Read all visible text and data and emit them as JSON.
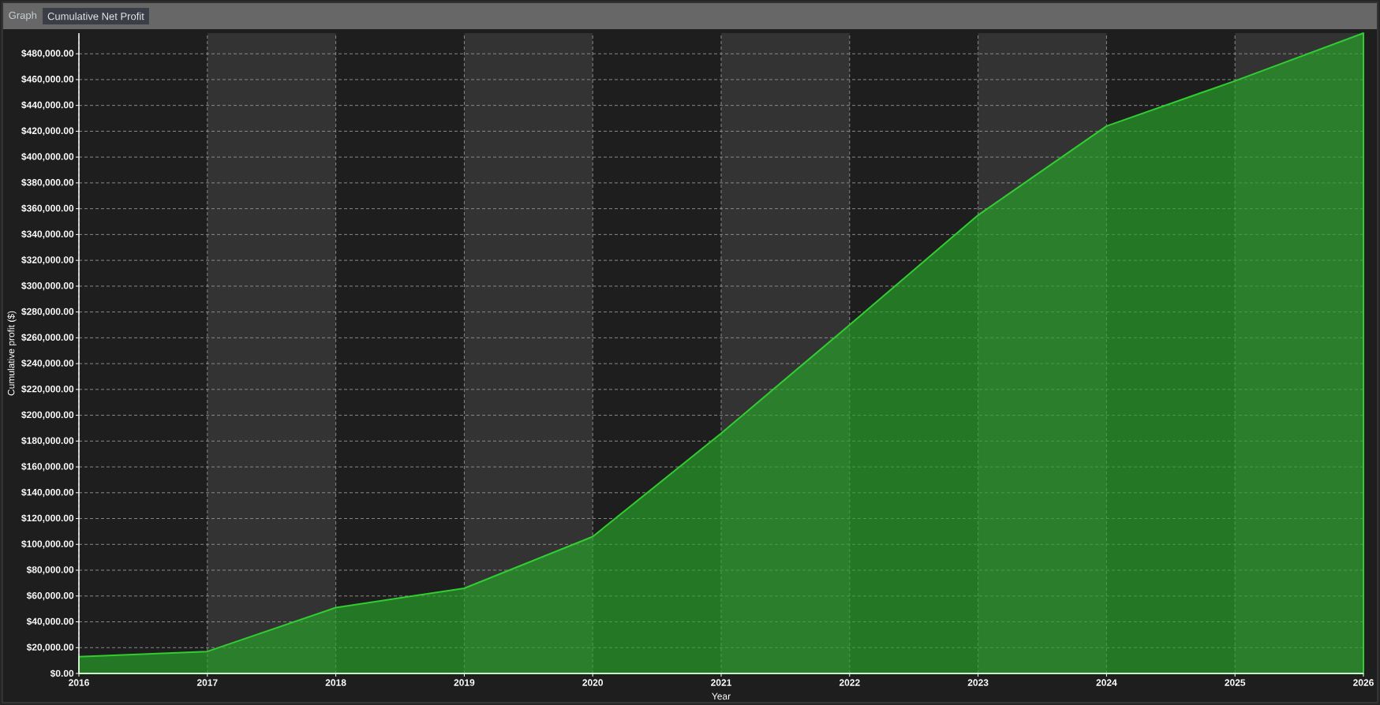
{
  "chart_data": {
    "type": "area",
    "title": "Cumulative Net Profit",
    "annotations": [
      "Graph"
    ],
    "xlabel": "Year",
    "ylabel": "Cumulative profit ($)",
    "x": [
      2016,
      2017,
      2018,
      2019,
      2020,
      2021,
      2022,
      2023,
      2024,
      2025,
      2026
    ],
    "series": [
      {
        "color": "#32cd32",
        "values": [
          13000,
          17000,
          51000,
          66000,
          106000,
          186000,
          270000,
          355000,
          424000,
          459000,
          496000
        ]
      }
    ],
    "xlim": [
      2016,
      2026
    ],
    "xticks": [
      2016,
      2017,
      2018,
      2019,
      2020,
      2021,
      2022,
      2023,
      2024,
      2025,
      2026
    ],
    "ylim": [
      0,
      496000
    ],
    "yticks": [
      {
        "value": 0,
        "label": "$0.00"
      },
      {
        "value": 20000,
        "label": "$20,000.00"
      },
      {
        "value": 40000,
        "label": "$40,000.00"
      },
      {
        "value": 60000,
        "label": "$60,000.00"
      },
      {
        "value": 80000,
        "label": "$80,000.00"
      },
      {
        "value": 100000,
        "label": "$100,000.00"
      },
      {
        "value": 120000,
        "label": "$120,000.00"
      },
      {
        "value": 140000,
        "label": "$140,000.00"
      },
      {
        "value": 160000,
        "label": "$160,000.00"
      },
      {
        "value": 180000,
        "label": "$180,000.00"
      },
      {
        "value": 200000,
        "label": "$200,000.00"
      },
      {
        "value": 220000,
        "label": "$220,000.00"
      },
      {
        "value": 240000,
        "label": "$240,000.00"
      },
      {
        "value": 260000,
        "label": "$260,000.00"
      },
      {
        "value": 280000,
        "label": "$280,000.00"
      },
      {
        "value": 300000,
        "label": "$300,000.00"
      },
      {
        "value": 320000,
        "label": "$320,000.00"
      },
      {
        "value": 340000,
        "label": "$340,000.00"
      },
      {
        "value": 360000,
        "label": "$360,000.00"
      },
      {
        "value": 380000,
        "label": "$380,000.00"
      },
      {
        "value": 400000,
        "label": "$400,000.00"
      },
      {
        "value": 420000,
        "label": "$420,000.00"
      },
      {
        "value": 440000,
        "label": "$440,000.00"
      },
      {
        "value": 460000,
        "label": "$460,000.00"
      },
      {
        "value": 480000,
        "label": "$480,000.00"
      }
    ],
    "bands": [
      {
        "axis": "x",
        "from": 2017,
        "to": 2018,
        "color": "#333333"
      },
      {
        "axis": "x",
        "from": 2019,
        "to": 2020,
        "color": "#333333"
      },
      {
        "axis": "x",
        "from": 2021,
        "to": 2022,
        "color": "#333333"
      },
      {
        "axis": "x",
        "from": 2023,
        "to": 2024,
        "color": "#333333"
      },
      {
        "axis": "x",
        "from": 2025,
        "to": 2026,
        "color": "#333333"
      }
    ],
    "grid": true
  }
}
